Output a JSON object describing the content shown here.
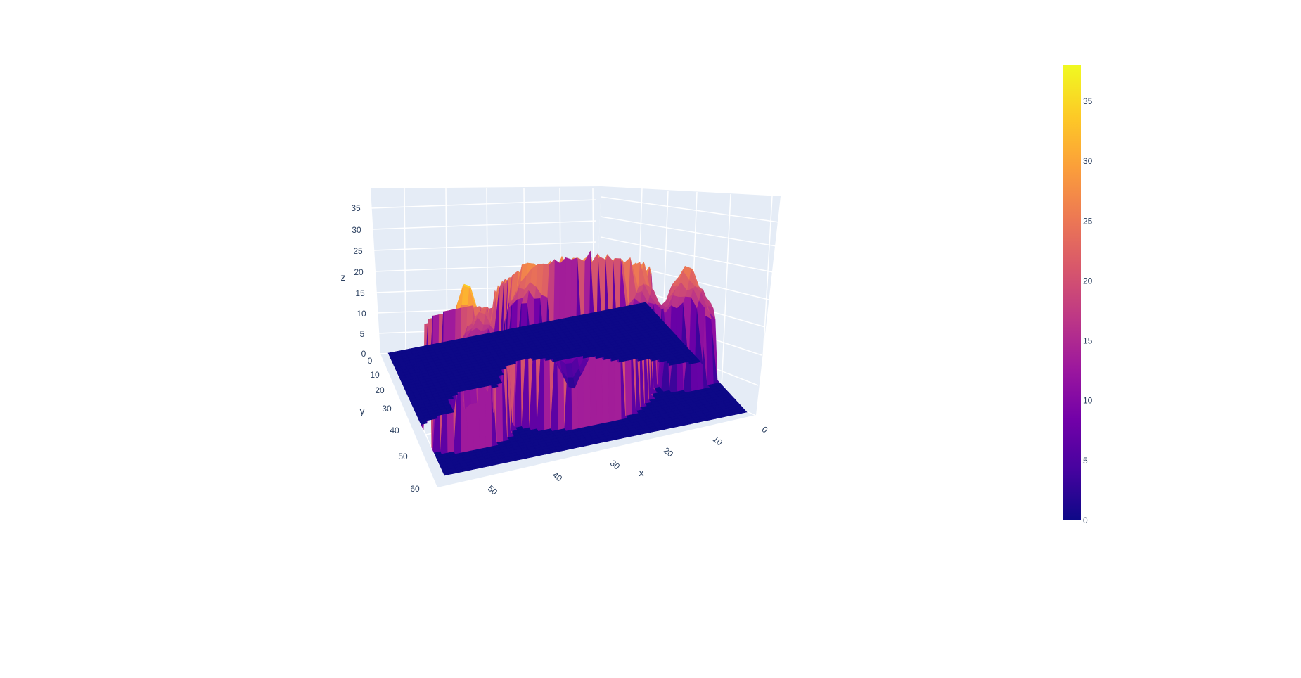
{
  "chart_data": {
    "type": "surface",
    "colorscale": "plasma",
    "x_axis": {
      "title": "x",
      "range": [
        0,
        60
      ],
      "ticks": [
        "0",
        "10",
        "20",
        "30",
        "40",
        "50"
      ]
    },
    "y_axis": {
      "title": "y",
      "range": [
        0,
        60
      ],
      "ticks": [
        "0",
        "10",
        "20",
        "30",
        "40",
        "50",
        "60"
      ]
    },
    "z_axis": {
      "title": "z",
      "range": [
        0,
        38
      ],
      "ticks": [
        "0",
        "5",
        "10",
        "15",
        "20",
        "25",
        "30",
        "35"
      ]
    },
    "colorbar": {
      "range": [
        0,
        38
      ],
      "ticks": [
        "0",
        "5",
        "10",
        "15",
        "20",
        "25",
        "30",
        "35"
      ]
    },
    "features": [
      {
        "shape": "ring",
        "x_center": 28,
        "y_center": 25,
        "outer_radius": 16,
        "inner_radius": 6,
        "height": 27
      },
      {
        "shape": "peak",
        "x": 52,
        "y": 18,
        "height": 38
      },
      {
        "shape": "tower",
        "x": 33,
        "y": 38,
        "height": 30
      },
      {
        "shape": "tower",
        "x": 46,
        "y": 30,
        "height": 24
      },
      {
        "shape": "tower",
        "x": 13,
        "y": 28,
        "height": 26
      },
      {
        "shape": "tower",
        "x": 5,
        "y": 22,
        "height": 28
      }
    ],
    "background_z": 0,
    "grid": true
  }
}
